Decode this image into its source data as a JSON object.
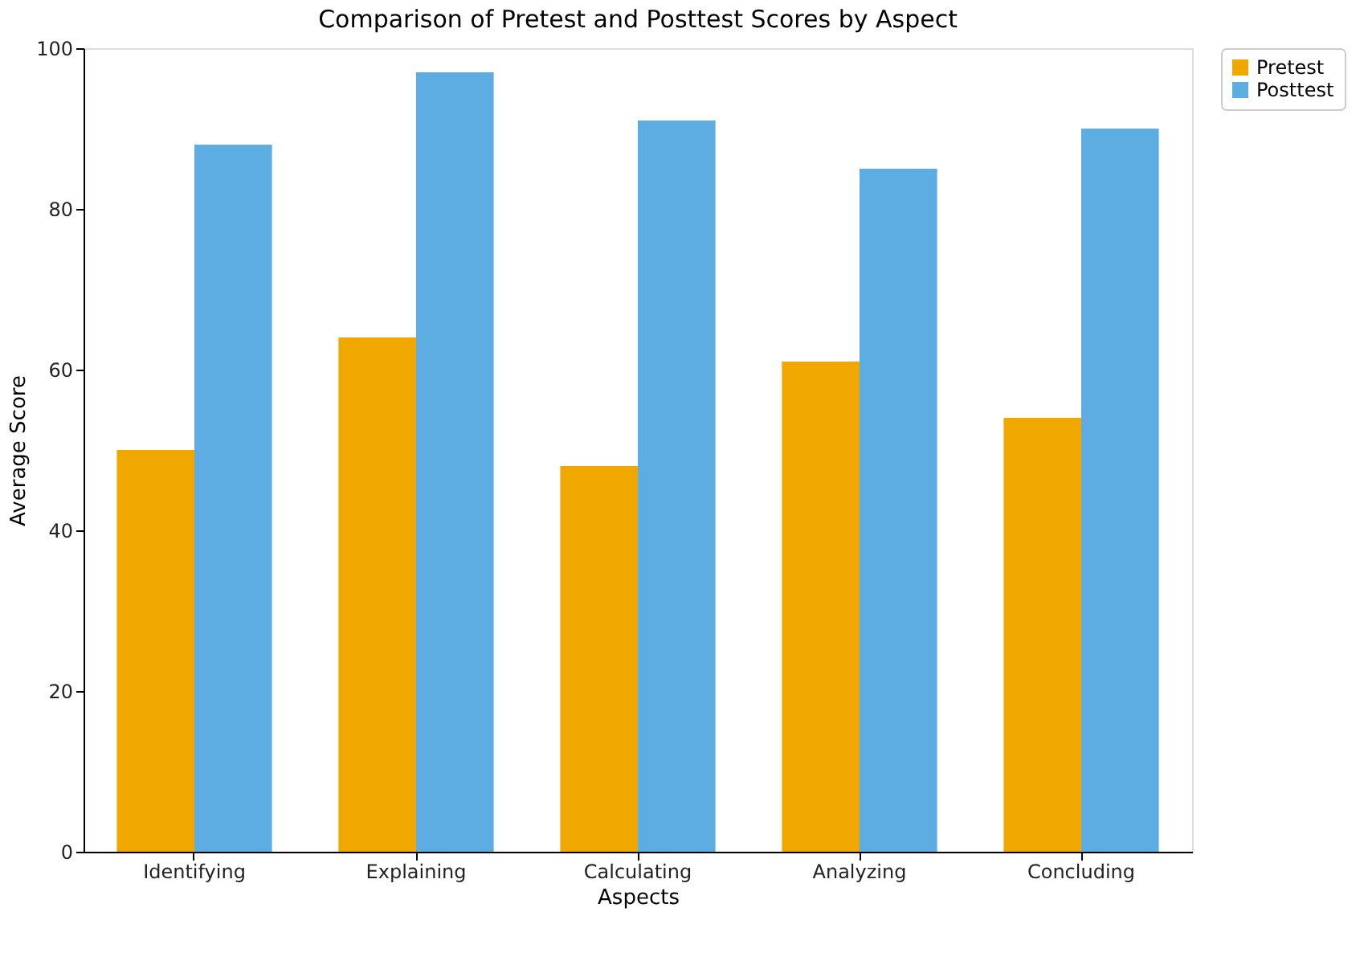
{
  "chart_data": {
    "type": "bar",
    "title": "Comparison of Pretest and Posttest Scores by Aspect",
    "xlabel": "Aspects",
    "ylabel": "Average Score",
    "categories": [
      "Identifying",
      "Explaining",
      "Calculating",
      "Analyzing",
      "Concluding"
    ],
    "series": [
      {
        "name": "Pretest",
        "color": "#f0a800",
        "values": [
          50,
          64,
          48,
          61,
          54
        ]
      },
      {
        "name": "Posttest",
        "color": "#5dade2",
        "values": [
          88,
          97,
          91,
          85,
          90
        ]
      }
    ],
    "ylim": [
      0,
      100
    ],
    "yticks": [
      0,
      20,
      40,
      60,
      80,
      100
    ],
    "grid": false,
    "legend": "top right"
  }
}
